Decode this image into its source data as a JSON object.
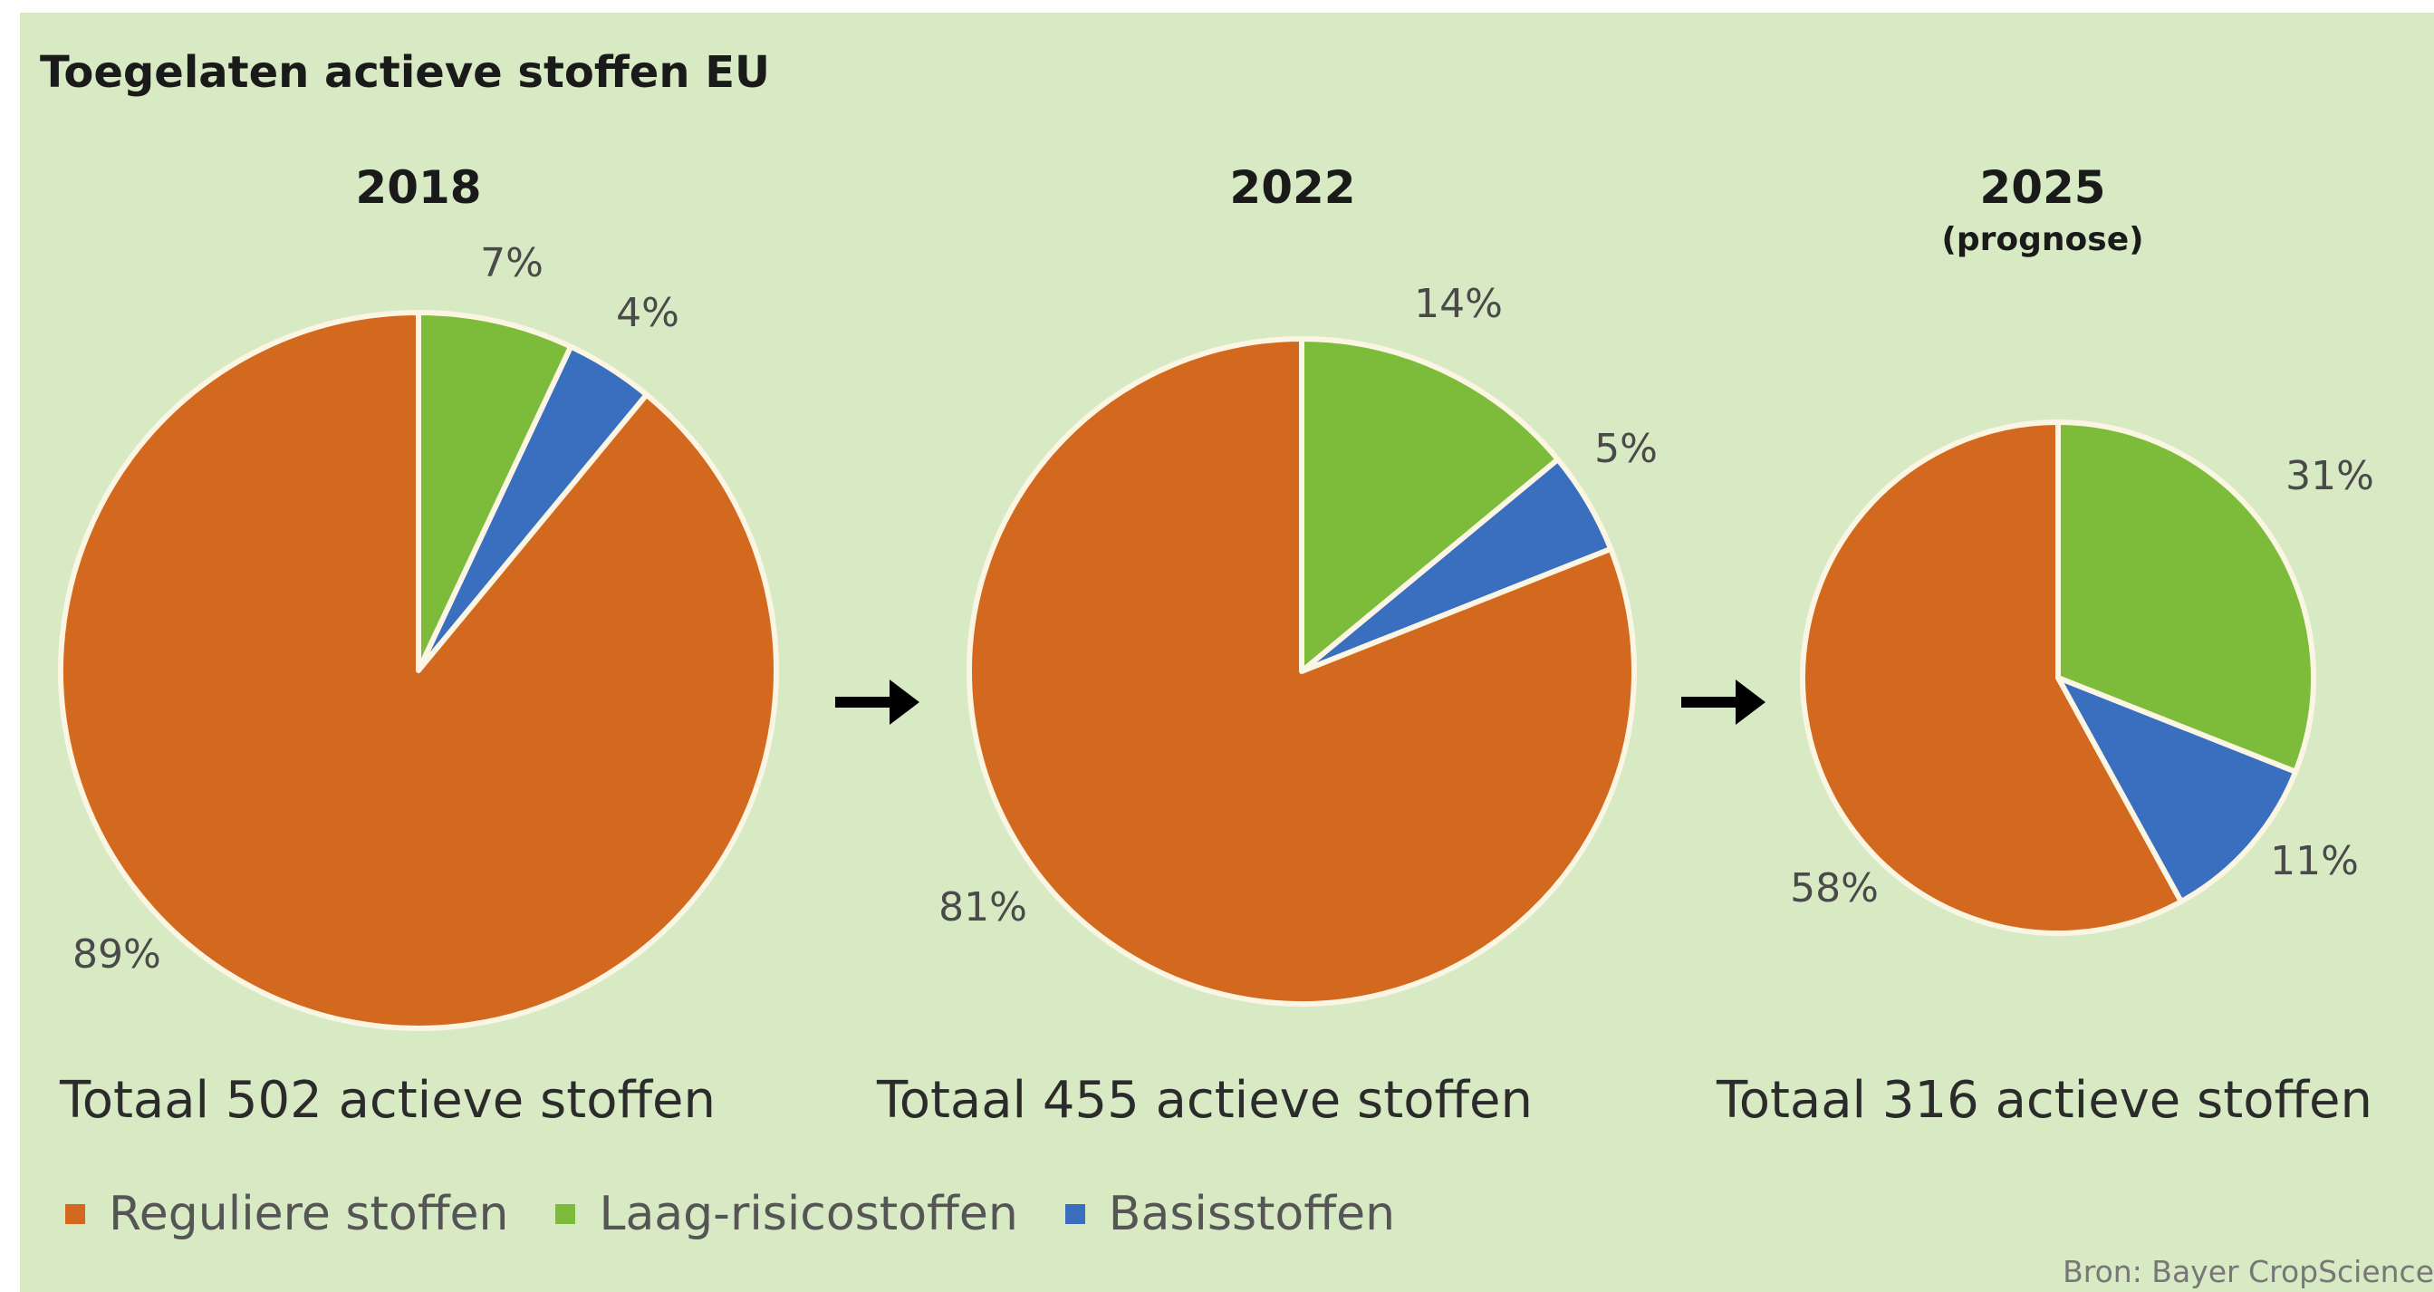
{
  "title": "Toegelaten actieve stoffen EU",
  "source": "Bron: Bayer CropScience",
  "legend": [
    {
      "label": "Reguliere stoffen",
      "color": "#d2691e"
    },
    {
      "label": "Laag-risicostoffen",
      "color": "#7dbb3a"
    },
    {
      "label": "Basisstoffen",
      "color": "#3a6fc0"
    }
  ],
  "chart_data": [
    {
      "type": "pie",
      "title": "2018",
      "subtitle": "",
      "total_label": "Totaal 502 actieve stoffen",
      "slices": [
        {
          "label": "Reguliere stoffen",
          "value": 89,
          "display": "89%"
        },
        {
          "label": "Laag-risicostoffen",
          "value": 7,
          "display": "7%"
        },
        {
          "label": "Basisstoffen",
          "value": 4,
          "display": "4%"
        }
      ]
    },
    {
      "type": "pie",
      "title": "2022",
      "subtitle": "",
      "total_label": "Totaal 455 actieve stoffen",
      "slices": [
        {
          "label": "Reguliere stoffen",
          "value": 81,
          "display": "81%"
        },
        {
          "label": "Laag-risicostoffen",
          "value": 14,
          "display": "14%"
        },
        {
          "label": "Basisstoffen",
          "value": 5,
          "display": "5%"
        }
      ]
    },
    {
      "type": "pie",
      "title": "2025",
      "subtitle": "(prognose)",
      "total_label": "Totaal 316 actieve stoffen",
      "slices": [
        {
          "label": "Reguliere stoffen",
          "value": 58,
          "display": "58%"
        },
        {
          "label": "Laag-risicostoffen",
          "value": 31,
          "display": "31%"
        },
        {
          "label": "Basisstoffen",
          "value": 11,
          "display": "11%"
        }
      ]
    }
  ]
}
